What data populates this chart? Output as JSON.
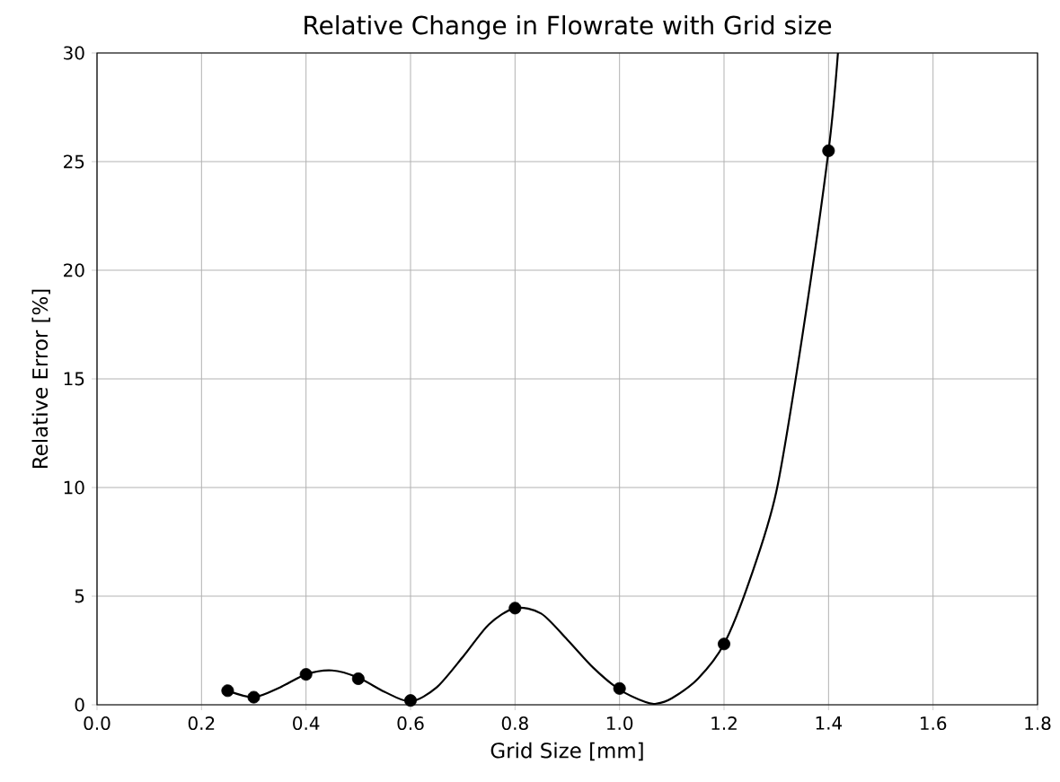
{
  "chart_data": {
    "type": "line",
    "title": "Relative Change in Flowrate with Grid size",
    "xlabel": "Grid Size [mm]",
    "ylabel": "Relative Error [%]",
    "xlim": [
      0,
      1.8
    ],
    "ylim": [
      0,
      30
    ],
    "xticks": [
      {
        "value": 0,
        "label": "0.0"
      },
      0.2,
      0.4,
      0.6,
      0.8,
      {
        "value": 1,
        "label": "1.0"
      },
      1.2,
      1.4,
      1.6,
      1.8
    ],
    "yticks": [
      0,
      5,
      10,
      15,
      20,
      25,
      30
    ],
    "grid": true,
    "series": [
      {
        "color": "#000000",
        "marker": "none",
        "line_style": "solid",
        "x": [
          0.25,
          0.3,
          0.35,
          0.4,
          0.45,
          0.5,
          0.55,
          0.6,
          0.65,
          0.7,
          0.75,
          0.8,
          0.85,
          0.9,
          0.95,
          1.0,
          1.05,
          1.07,
          1.1,
          1.15,
          1.2,
          1.25,
          1.3,
          1.35,
          1.4,
          1.418
        ],
        "values": [
          0.65,
          0.35,
          0.8,
          1.4,
          1.58,
          1.25,
          0.6,
          0.15,
          0.8,
          2.2,
          3.7,
          4.45,
          4.2,
          3.0,
          1.7,
          0.7,
          0.12,
          0.05,
          0.3,
          1.2,
          2.8,
          5.8,
          9.8,
          17.0,
          25.5,
          30
        ]
      },
      {
        "type": "scatter",
        "color": "#000000",
        "marker": "circle",
        "x": [
          0.25,
          0.3,
          0.4,
          0.5,
          0.6,
          0.8,
          1.0,
          1.2,
          1.4
        ],
        "values": [
          0.65,
          0.35,
          1.4,
          1.2,
          0.2,
          4.45,
          0.75,
          2.8,
          25.5
        ]
      }
    ]
  }
}
